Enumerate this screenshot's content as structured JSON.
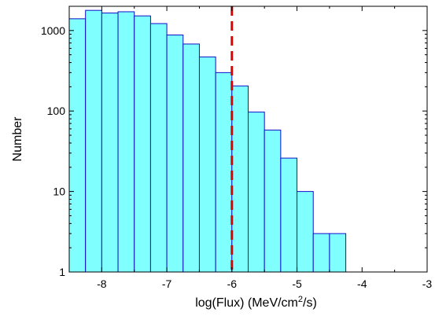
{
  "chart_data": {
    "type": "bar",
    "subtype": "histogram",
    "title": "",
    "xlabel_parts": {
      "base": "log(Flux) (MeV/cm",
      "sup": "2",
      "tail": "/s)"
    },
    "ylabel": "Number",
    "y_scale": "log",
    "xlim": [
      -8.5,
      -3
    ],
    "ylim": [
      1,
      2000
    ],
    "x_ticks": [
      -8,
      -7,
      -6,
      -5,
      -4,
      -3
    ],
    "x_tick_labels": [
      "-8",
      "-7",
      "-6",
      "-5",
      "-4",
      "-3"
    ],
    "y_ticks": [
      1,
      10,
      100,
      1000
    ],
    "y_tick_labels": [
      "1",
      "10",
      "100",
      "1000"
    ],
    "bin_width": 0.25,
    "bins": [
      {
        "x0": -8.5,
        "x1": -8.25,
        "value": 1400
      },
      {
        "x0": -8.25,
        "x1": -8.0,
        "value": 1780
      },
      {
        "x0": -8.0,
        "x1": -7.75,
        "value": 1650
      },
      {
        "x0": -7.75,
        "x1": -7.5,
        "value": 1710
      },
      {
        "x0": -7.5,
        "x1": -7.25,
        "value": 1520
      },
      {
        "x0": -7.25,
        "x1": -7.0,
        "value": 1220
      },
      {
        "x0": -7.0,
        "x1": -6.75,
        "value": 880
      },
      {
        "x0": -6.75,
        "x1": -6.5,
        "value": 680
      },
      {
        "x0": -6.5,
        "x1": -6.25,
        "value": 470
      },
      {
        "x0": -6.25,
        "x1": -6.0,
        "value": 300
      },
      {
        "x0": -6.0,
        "x1": -5.75,
        "value": 205
      },
      {
        "x0": -5.75,
        "x1": -5.5,
        "value": 97
      },
      {
        "x0": -5.5,
        "x1": -5.25,
        "value": 58
      },
      {
        "x0": -5.25,
        "x1": -5.0,
        "value": 26
      },
      {
        "x0": -5.0,
        "x1": -4.75,
        "value": 10
      },
      {
        "x0": -4.75,
        "x1": -4.5,
        "value": 3
      },
      {
        "x0": -4.5,
        "x1": -4.25,
        "value": 3
      }
    ],
    "reference_line": {
      "x": -6,
      "style": "dashed"
    },
    "colors": {
      "bar_fill": "#80ffff",
      "bar_stroke": "#1010c8",
      "reference_line": "#e00000",
      "axis": "#000000"
    },
    "grid": false,
    "legend": "none"
  }
}
